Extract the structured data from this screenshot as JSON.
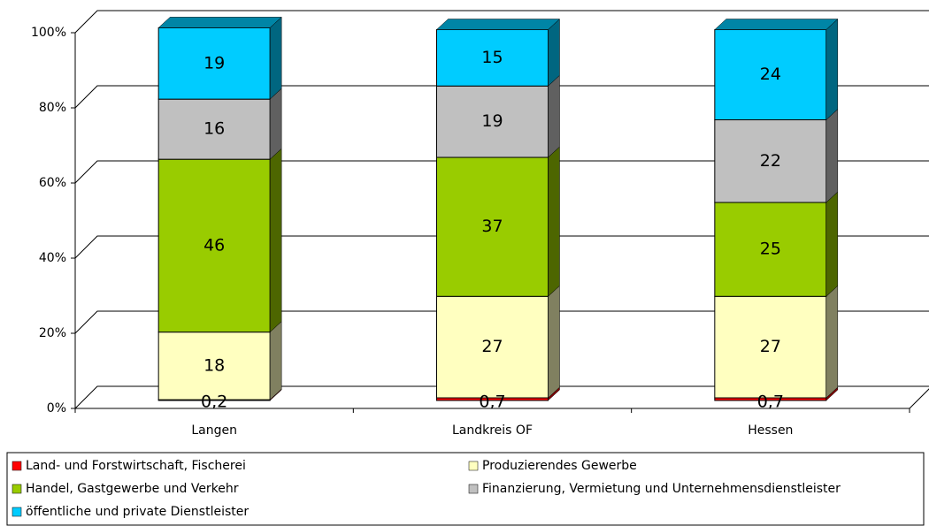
{
  "chart_data": {
    "type": "bar",
    "stacked": true,
    "categories": [
      "Langen",
      "Landkreis OF",
      "Hessen"
    ],
    "series": [
      {
        "name": "Land- und Forstwirtschaft, Fischerei",
        "color": "#ff0000",
        "values": [
          0.2,
          0.7,
          0.7
        ],
        "value_labels": [
          "0,2",
          "0,7",
          "0,7"
        ]
      },
      {
        "name": "Produzierendes Gewerbe",
        "color": "#ffffc0",
        "values": [
          18,
          27,
          27
        ]
      },
      {
        "name": "Handel, Gastgewerbe und Verkehr",
        "color": "#99cc00",
        "values": [
          46,
          37,
          25
        ]
      },
      {
        "name": "Finanzierung, Vermietung und Unternehmensdienstleister",
        "color": "#c0c0c0",
        "values": [
          16,
          19,
          22
        ]
      },
      {
        "name": "öffentliche und private Dienstleister",
        "color": "#00ccff",
        "values": [
          19,
          15,
          24
        ]
      }
    ],
    "ylim": [
      0,
      100
    ],
    "yticks": [
      {
        "value": 0,
        "label": "0%"
      },
      {
        "value": 20,
        "label": "20%"
      },
      {
        "value": 40,
        "label": "40%"
      },
      {
        "value": 60,
        "label": "60%"
      },
      {
        "value": 80,
        "label": "80%"
      },
      {
        "value": 100,
        "label": "100%"
      }
    ],
    "grid": true,
    "legend": "bottom"
  }
}
